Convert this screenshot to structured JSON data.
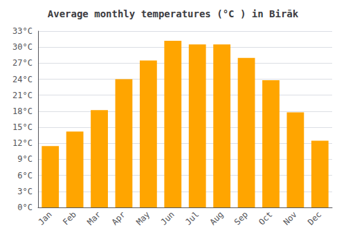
{
  "chart_data": {
    "type": "bar",
    "title": "Average monthly temperatures (°C ) in Birāk",
    "categories": [
      "Jan",
      "Feb",
      "Mar",
      "Apr",
      "May",
      "Jun",
      "Jul",
      "Aug",
      "Sep",
      "Oct",
      "Nov",
      "Dec"
    ],
    "values": [
      11.5,
      14.2,
      18.2,
      24.0,
      27.5,
      31.2,
      30.5,
      30.5,
      28.0,
      23.8,
      17.8,
      12.5
    ],
    "color": "#FFA500",
    "ylim": [
      0,
      33
    ],
    "yticks": [
      {
        "value": 0,
        "label": "0°C"
      },
      {
        "value": 3,
        "label": "3°C"
      },
      {
        "value": 6,
        "label": "6°C"
      },
      {
        "value": 9,
        "label": "9°C"
      },
      {
        "value": 12,
        "label": "12°C"
      },
      {
        "value": 15,
        "label": "15°C"
      },
      {
        "value": 18,
        "label": "18°C"
      },
      {
        "value": 21,
        "label": "21°C"
      },
      {
        "value": 24,
        "label": "24°C"
      },
      {
        "value": 27,
        "label": "27°C"
      },
      {
        "value": 30,
        "label": "30°C"
      },
      {
        "value": 33,
        "label": "33°C"
      }
    ],
    "grid": true
  }
}
